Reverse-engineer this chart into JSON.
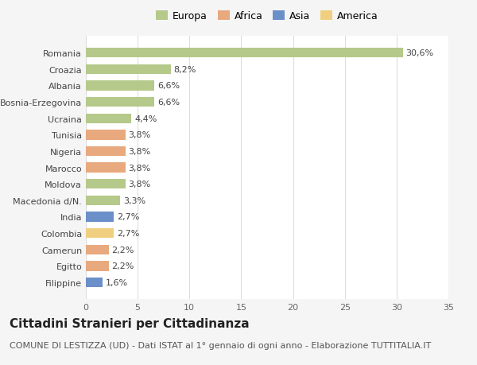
{
  "countries": [
    "Romania",
    "Croazia",
    "Albania",
    "Bosnia-Erzegovina",
    "Ucraina",
    "Tunisia",
    "Nigeria",
    "Marocco",
    "Moldova",
    "Macedonia d/N.",
    "India",
    "Colombia",
    "Camerun",
    "Egitto",
    "Filippine"
  ],
  "values": [
    30.6,
    8.2,
    6.6,
    6.6,
    4.4,
    3.8,
    3.8,
    3.8,
    3.8,
    3.3,
    2.7,
    2.7,
    2.2,
    2.2,
    1.6
  ],
  "continents": [
    "Europa",
    "Europa",
    "Europa",
    "Europa",
    "Europa",
    "Africa",
    "Africa",
    "Africa",
    "Europa",
    "Europa",
    "Asia",
    "America",
    "Africa",
    "Africa",
    "Asia"
  ],
  "labels": [
    "30,6%",
    "8,2%",
    "6,6%",
    "6,6%",
    "4,4%",
    "3,8%",
    "3,8%",
    "3,8%",
    "3,8%",
    "3,3%",
    "2,7%",
    "2,7%",
    "2,2%",
    "2,2%",
    "1,6%"
  ],
  "colors": {
    "Europa": "#b5c98a",
    "Africa": "#e8a97e",
    "Asia": "#6b8fc9",
    "America": "#f0d080"
  },
  "legend_order": [
    "Europa",
    "Africa",
    "Asia",
    "America"
  ],
  "title": "Cittadini Stranieri per Cittadinanza",
  "subtitle": "COMUNE DI LESTIZZA (UD) - Dati ISTAT al 1° gennaio di ogni anno - Elaborazione TUTTITALIA.IT",
  "xlim": [
    0,
    35
  ],
  "xticks": [
    0,
    5,
    10,
    15,
    20,
    25,
    30,
    35
  ],
  "background_color": "#f5f5f5",
  "plot_background": "#ffffff",
  "grid_color": "#dddddd",
  "bar_height": 0.6,
  "title_fontsize": 11,
  "subtitle_fontsize": 8,
  "label_fontsize": 8,
  "tick_fontsize": 8,
  "legend_fontsize": 9
}
